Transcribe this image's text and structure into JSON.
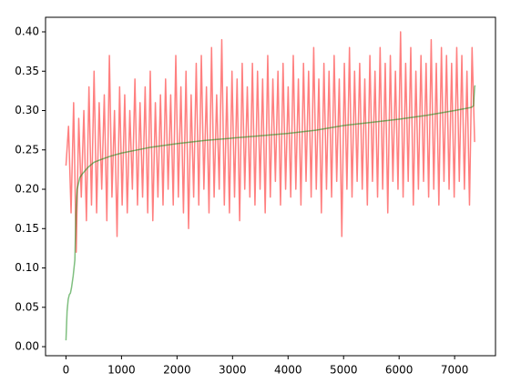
{
  "chart_data": {
    "type": "line",
    "xlim": [
      -368,
      7736
    ],
    "ylim": [
      -0.0115,
      0.4185
    ],
    "xticks": [
      0,
      1000,
      2000,
      3000,
      4000,
      5000,
      6000,
      7000
    ],
    "yticks": [
      {
        "value": 0,
        "label": "0.00"
      },
      {
        "value": 0.05,
        "label": "0.05"
      },
      {
        "value": 0.1,
        "label": "0.10"
      },
      {
        "value": 0.15,
        "label": "0.15"
      },
      {
        "value": 0.2,
        "label": "0.20"
      },
      {
        "value": 0.25,
        "label": "0.25"
      },
      {
        "value": 0.3,
        "label": "0.30"
      },
      {
        "value": 0.35,
        "label": "0.35"
      },
      {
        "value": 0.4,
        "label": "0.40"
      }
    ],
    "series": [
      {
        "color": "#ff0000",
        "x": [
          0,
          46,
          92,
          138,
          184,
          230,
          276,
          322,
          368,
          414,
          460,
          506,
          552,
          598,
          644,
          690,
          736,
          782,
          828,
          874,
          920,
          966,
          1012,
          1058,
          1104,
          1150,
          1196,
          1242,
          1288,
          1334,
          1380,
          1426,
          1472,
          1518,
          1564,
          1610,
          1656,
          1702,
          1748,
          1794,
          1840,
          1886,
          1932,
          1978,
          2024,
          2070,
          2116,
          2162,
          2208,
          2254,
          2300,
          2346,
          2392,
          2438,
          2484,
          2530,
          2576,
          2622,
          2668,
          2714,
          2760,
          2806,
          2852,
          2898,
          2944,
          2990,
          3036,
          3082,
          3128,
          3174,
          3220,
          3266,
          3312,
          3358,
          3404,
          3450,
          3496,
          3542,
          3588,
          3634,
          3680,
          3726,
          3772,
          3818,
          3864,
          3910,
          3956,
          4002,
          4048,
          4094,
          4140,
          4186,
          4232,
          4278,
          4324,
          4370,
          4416,
          4462,
          4508,
          4554,
          4600,
          4646,
          4692,
          4738,
          4784,
          4830,
          4876,
          4922,
          4968,
          5014,
          5060,
          5106,
          5152,
          5198,
          5244,
          5290,
          5336,
          5382,
          5428,
          5474,
          5520,
          5566,
          5612,
          5658,
          5704,
          5750,
          5796,
          5842,
          5888,
          5934,
          5980,
          6026,
          6072,
          6118,
          6164,
          6210,
          6256,
          6302,
          6348,
          6394,
          6440,
          6486,
          6532,
          6578,
          6624,
          6670,
          6716,
          6762,
          6808,
          6854,
          6900,
          6946,
          6992,
          7038,
          7084,
          7130,
          7176,
          7222,
          7268,
          7314,
          7360
        ],
        "values": [
          0.23,
          0.28,
          0.17,
          0.31,
          0.12,
          0.29,
          0.19,
          0.3,
          0.16,
          0.33,
          0.18,
          0.35,
          0.17,
          0.31,
          0.2,
          0.32,
          0.16,
          0.37,
          0.19,
          0.3,
          0.14,
          0.33,
          0.18,
          0.32,
          0.17,
          0.3,
          0.2,
          0.34,
          0.18,
          0.31,
          0.19,
          0.33,
          0.17,
          0.35,
          0.16,
          0.31,
          0.19,
          0.32,
          0.18,
          0.34,
          0.2,
          0.32,
          0.18,
          0.37,
          0.19,
          0.33,
          0.17,
          0.35,
          0.15,
          0.32,
          0.19,
          0.36,
          0.18,
          0.37,
          0.2,
          0.33,
          0.17,
          0.38,
          0.19,
          0.32,
          0.2,
          0.39,
          0.18,
          0.33,
          0.17,
          0.35,
          0.19,
          0.34,
          0.16,
          0.36,
          0.2,
          0.33,
          0.19,
          0.36,
          0.18,
          0.35,
          0.2,
          0.34,
          0.17,
          0.37,
          0.19,
          0.34,
          0.21,
          0.35,
          0.18,
          0.36,
          0.2,
          0.33,
          0.19,
          0.37,
          0.2,
          0.34,
          0.18,
          0.36,
          0.21,
          0.35,
          0.19,
          0.38,
          0.2,
          0.34,
          0.17,
          0.36,
          0.2,
          0.35,
          0.19,
          0.37,
          0.21,
          0.34,
          0.14,
          0.36,
          0.2,
          0.38,
          0.19,
          0.35,
          0.21,
          0.36,
          0.2,
          0.34,
          0.18,
          0.37,
          0.21,
          0.35,
          0.19,
          0.38,
          0.2,
          0.36,
          0.17,
          0.37,
          0.21,
          0.35,
          0.2,
          0.4,
          0.19,
          0.36,
          0.21,
          0.38,
          0.18,
          0.35,
          0.2,
          0.37,
          0.21,
          0.36,
          0.19,
          0.39,
          0.2,
          0.36,
          0.18,
          0.38,
          0.21,
          0.37,
          0.2,
          0.36,
          0.19,
          0.38,
          0.21,
          0.37,
          0.2,
          0.35,
          0.18,
          0.38,
          0.26
        ]
      },
      {
        "color": "#008000",
        "x": [
          0,
          20,
          40,
          60,
          80,
          100,
          130,
          160,
          180,
          200,
          250,
          300,
          400,
          500,
          600,
          800,
          1000,
          1500,
          2000,
          2500,
          3000,
          3500,
          4000,
          4500,
          5000,
          5500,
          6000,
          6500,
          7000,
          7300,
          7340,
          7360,
          7368
        ],
        "values": [
          0.008,
          0.045,
          0.06,
          0.066,
          0.068,
          0.075,
          0.09,
          0.11,
          0.17,
          0.2,
          0.215,
          0.22,
          0.228,
          0.234,
          0.237,
          0.242,
          0.246,
          0.253,
          0.258,
          0.262,
          0.265,
          0.268,
          0.271,
          0.275,
          0.281,
          0.285,
          0.289,
          0.294,
          0.3,
          0.304,
          0.306,
          0.33,
          0.332
        ]
      }
    ]
  }
}
